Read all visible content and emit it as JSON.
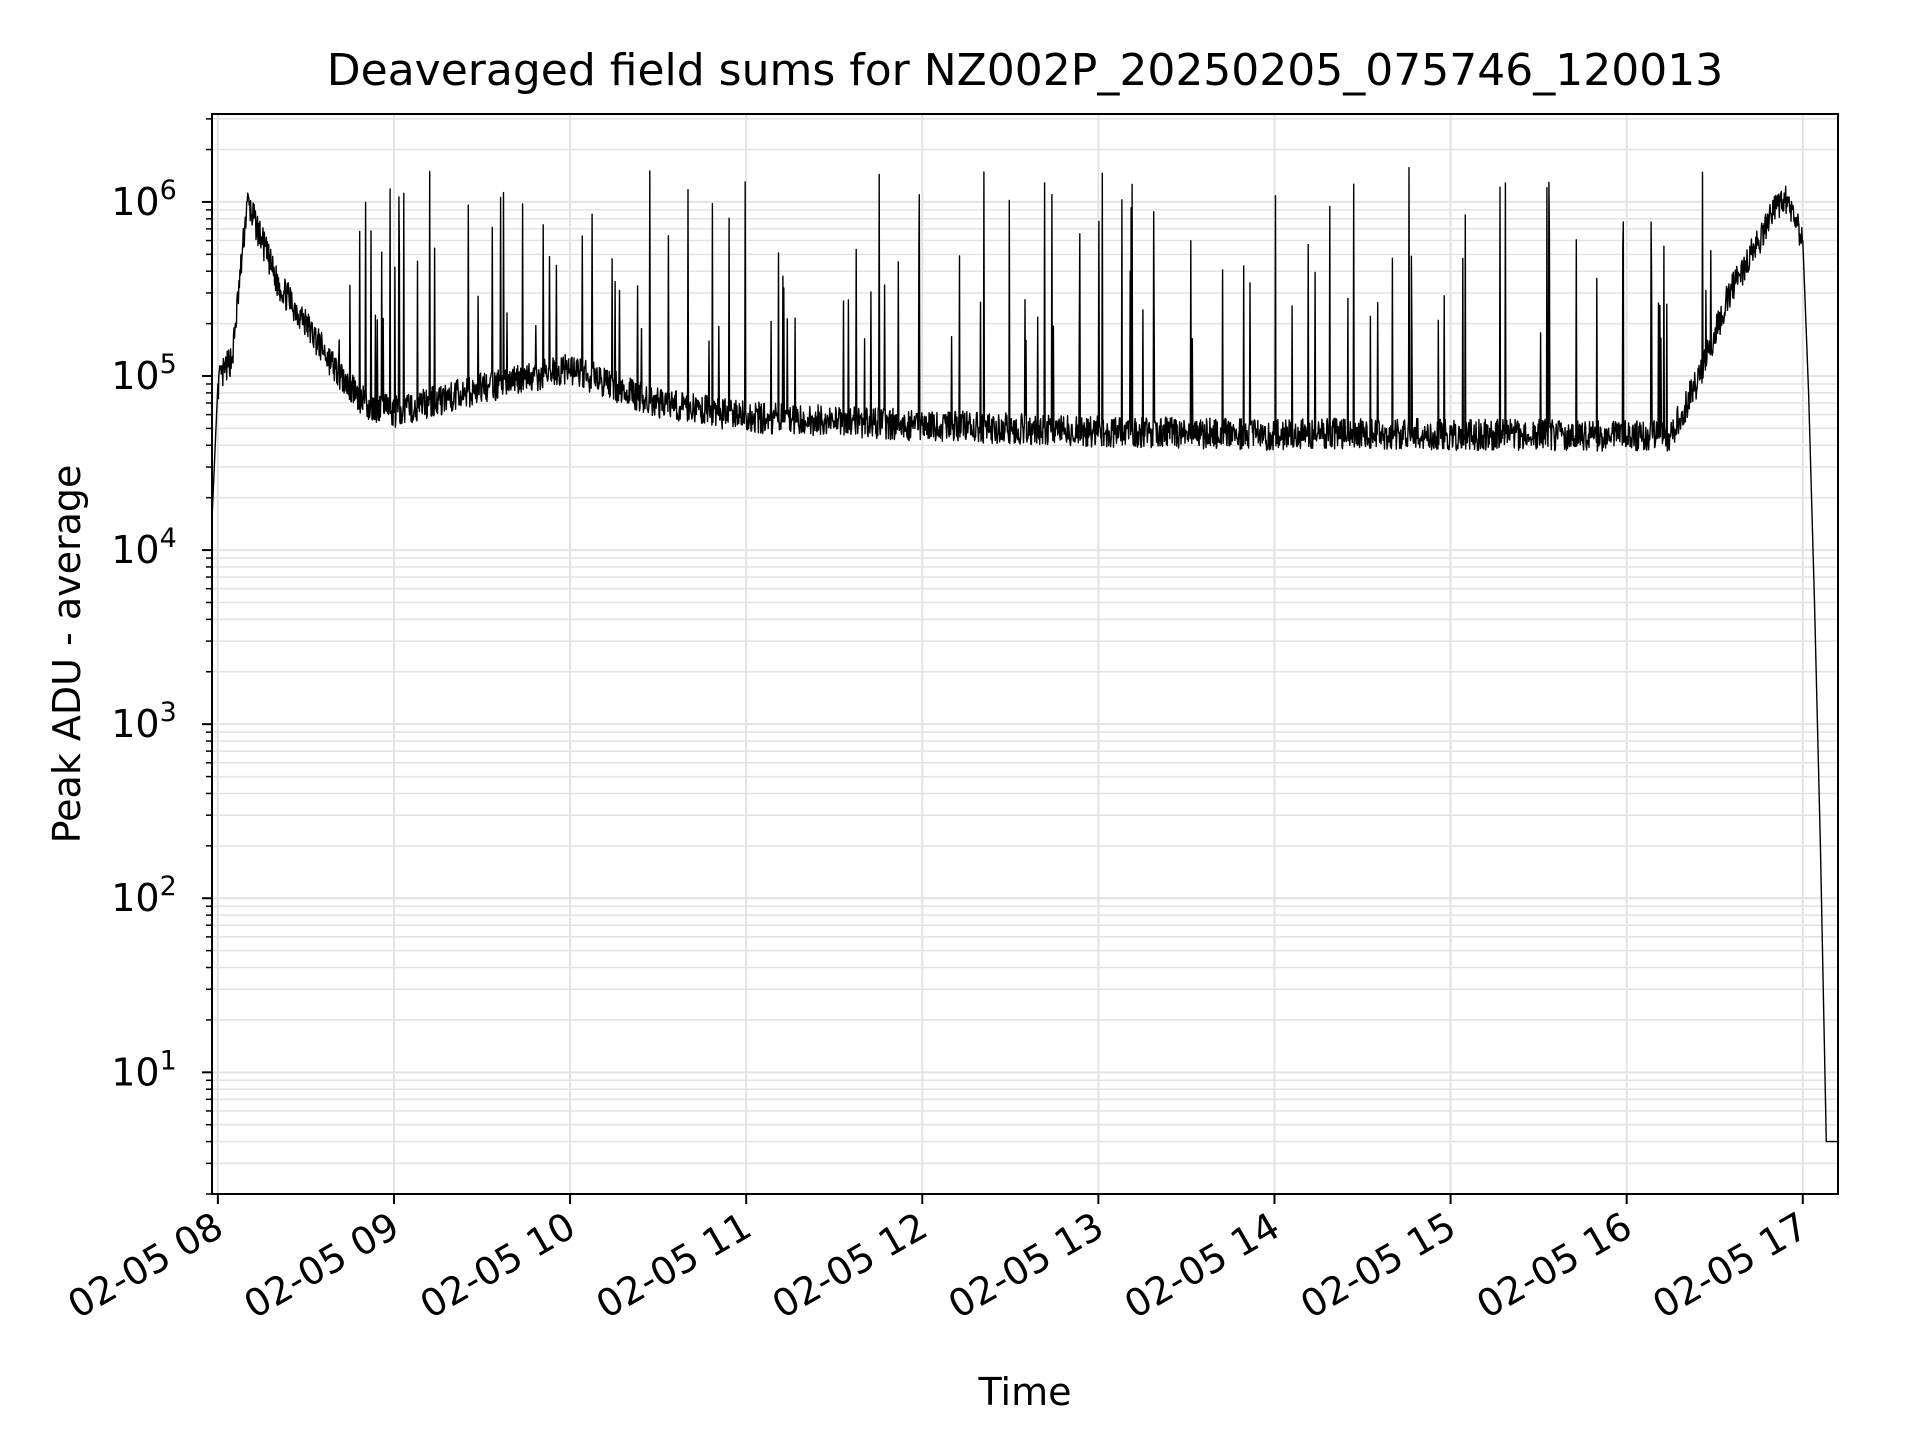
{
  "chart_data": {
    "type": "line",
    "title": "Deaveraged field sums for NZ002P_20250205_075746_120013",
    "xlabel": "Time",
    "ylabel": "Peak ADU - average",
    "yscale": "log",
    "ylim": [
      2,
      3200000
    ],
    "xlim": [
      "2025-02-05 07:58",
      "2025-02-05 17:12"
    ],
    "x_ticks": [
      "02-05 08",
      "02-05 09",
      "02-05 10",
      "02-05 11",
      "02-05 12",
      "02-05 13",
      "02-05 14",
      "02-05 15",
      "02-05 16",
      "02-05 17"
    ],
    "y_ticks": [
      {
        "base": "10",
        "exp": "1"
      },
      {
        "base": "10",
        "exp": "2"
      },
      {
        "base": "10",
        "exp": "3"
      },
      {
        "base": "10",
        "exp": "4"
      },
      {
        "base": "10",
        "exp": "5"
      },
      {
        "base": "10",
        "exp": "6"
      }
    ],
    "grid": true,
    "line_color": "#000000",
    "grid_color": "#e3e3e3",
    "series": [
      {
        "x": [
          "2025-02-05 07:58",
          "2025-02-05 08:00",
          "2025-02-05 08:05",
          "2025-02-05 08:10",
          "2025-02-05 08:15",
          "2025-02-05 08:20",
          "2025-02-05 08:30",
          "2025-02-05 08:40",
          "2025-02-05 08:50",
          "2025-02-05 09:00",
          "2025-02-05 09:30",
          "2025-02-05 10:00",
          "2025-02-05 10:30",
          "2025-02-05 11:00",
          "2025-02-05 11:30",
          "2025-02-05 12:00",
          "2025-02-05 12:30",
          "2025-02-05 13:00",
          "2025-02-05 13:30",
          "2025-02-05 14:00",
          "2025-02-05 14:30",
          "2025-02-05 15:00",
          "2025-02-05 15:30",
          "2025-02-05 16:00",
          "2025-02-05 16:15",
          "2025-02-05 16:25",
          "2025-02-05 16:35",
          "2025-02-05 16:45",
          "2025-02-05 16:50",
          "2025-02-05 16:55",
          "2025-02-05 17:00",
          "2025-02-05 17:02",
          "2025-02-05 17:04",
          "2025-02-05 17:06",
          "2025-02-05 17:08",
          "2025-02-05 17:10",
          "2025-02-05 17:12"
        ],
        "values": [
          15000,
          90000,
          130000,
          1000000,
          600000,
          350000,
          200000,
          110000,
          70000,
          62000,
          85000,
          110000,
          70000,
          58000,
          55000,
          52000,
          50000,
          48000,
          47000,
          46000,
          47000,
          46000,
          46000,
          45000,
          45000,
          100000,
          300000,
          600000,
          900000,
          1050000,
          600000,
          80000,
          5000,
          200,
          4,
          4,
          4
        ]
      }
    ]
  }
}
